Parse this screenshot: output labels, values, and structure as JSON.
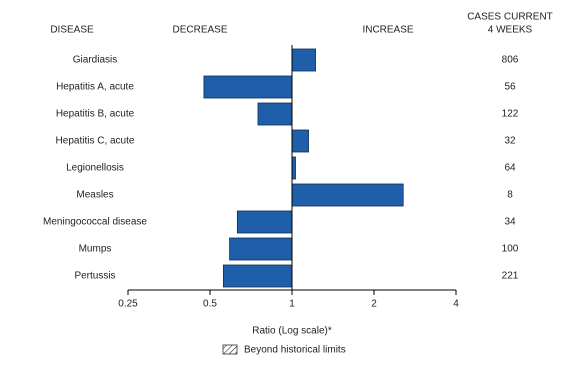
{
  "chart_data": {
    "type": "bar",
    "orientation": "horizontal",
    "column_labels": {
      "disease": "DISEASE",
      "decrease": "DECREASE",
      "increase": "INCREASE",
      "cases": [
        "CASES CURRENT",
        "4 WEEKS"
      ]
    },
    "categories": [
      "Giardiasis",
      "Hepatitis A, acute",
      "Hepatitis B, acute",
      "Hepatitis C, acute",
      "Legionellosis",
      "Measles",
      "Meningococcal disease",
      "Mumps",
      "Pertussis"
    ],
    "values": [
      1.22,
      0.475,
      0.75,
      1.15,
      1.03,
      2.56,
      0.63,
      0.59,
      0.56
    ],
    "cases": [
      806,
      56,
      122,
      32,
      64,
      8,
      34,
      100,
      221
    ],
    "color": "#1f5ea8",
    "xlim": [
      0.25,
      4
    ],
    "xticks": [
      0.25,
      0.5,
      1,
      2,
      4
    ],
    "xscale": "log",
    "baseline": 1,
    "xlabel": "Ratio (Log scale)*",
    "legend": [
      {
        "label": "Beyond historical limits",
        "pattern": "hatch"
      }
    ]
  }
}
